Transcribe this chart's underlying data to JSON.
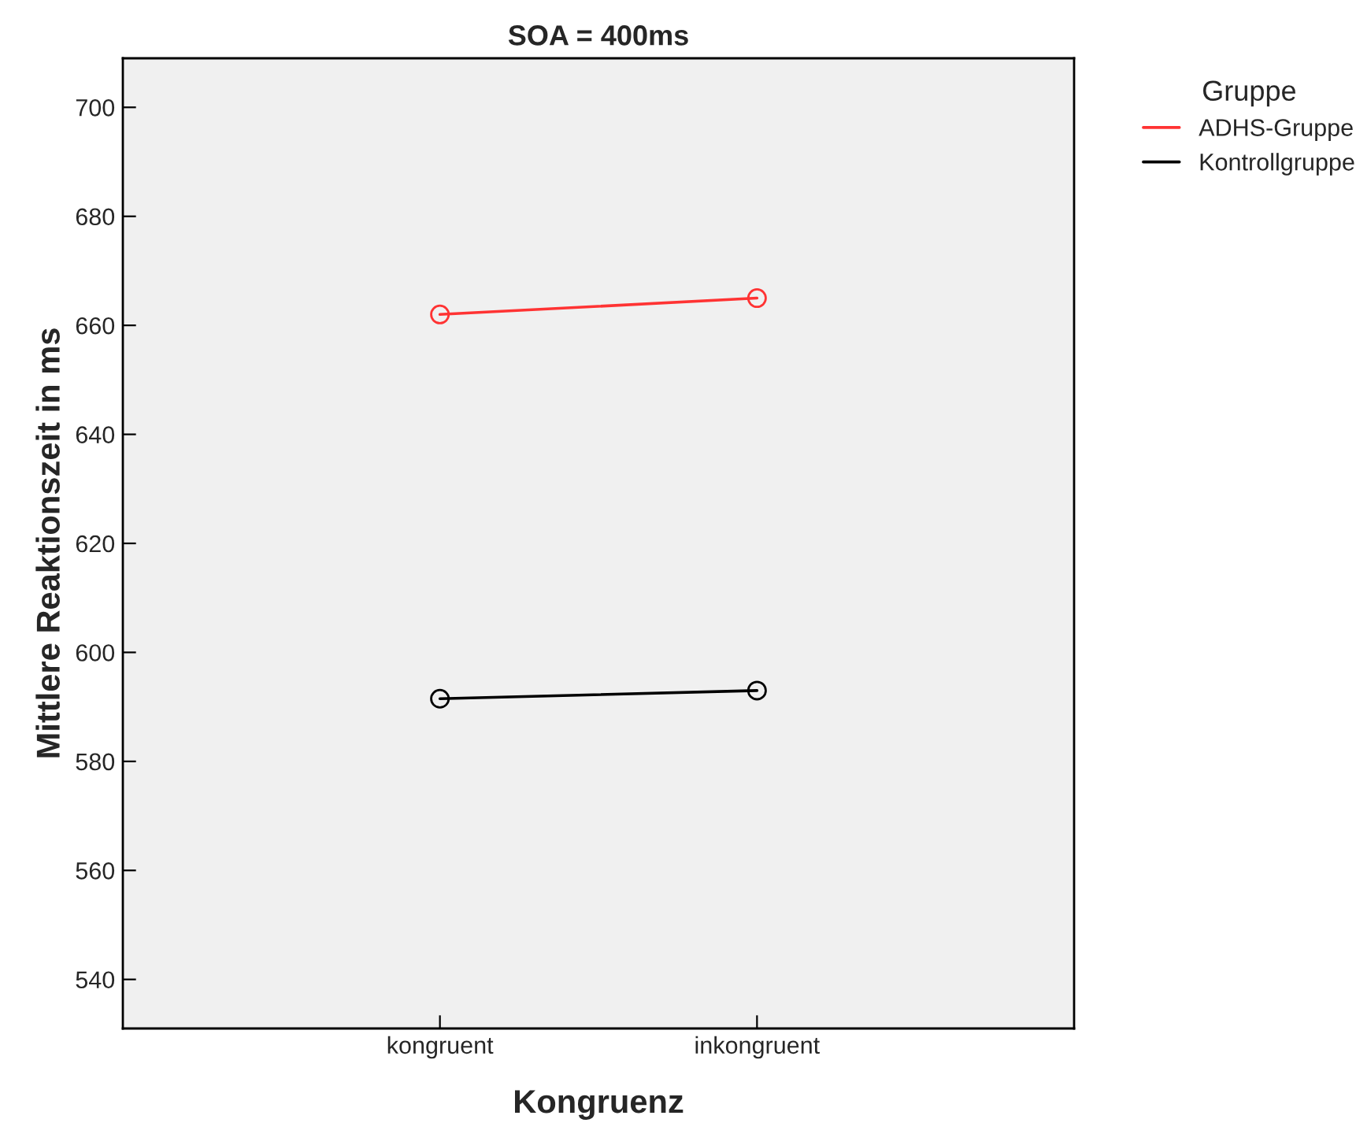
{
  "chart_data": {
    "type": "line",
    "title": "SOA = 400ms",
    "xlabel": "Kongruenz",
    "ylabel": "Mittlere Reaktionszeit in ms",
    "legend_title": "Gruppe",
    "categories": [
      "kongruent",
      "inkongruent"
    ],
    "series": [
      {
        "name": "ADHS-Gruppe",
        "color": "#ff3333",
        "values": [
          662,
          665
        ]
      },
      {
        "name": "Kontrollgruppe",
        "color": "#000000",
        "values": [
          591.5,
          593
        ]
      }
    ],
    "ylim": [
      531,
      709
    ],
    "yticks": [
      540,
      560,
      580,
      600,
      620,
      640,
      660,
      680,
      700
    ],
    "grid": false,
    "legend": "top right",
    "marker": "circle",
    "line_style": "solid"
  }
}
